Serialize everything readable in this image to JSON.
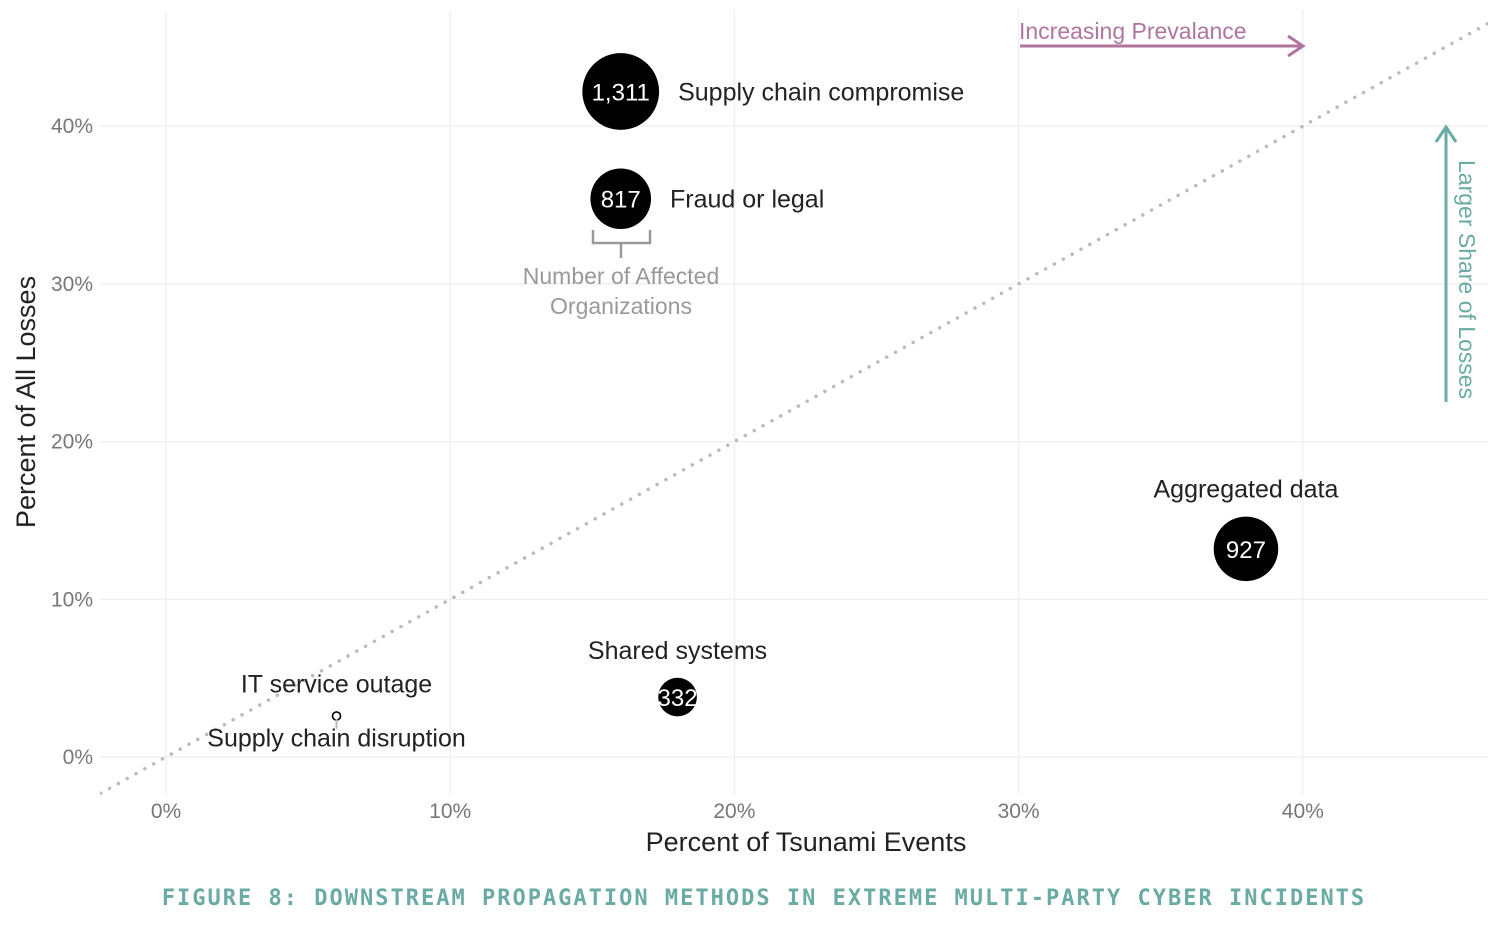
{
  "caption": "FIGURE 8: DOWNSTREAM PROPAGATION METHODS IN EXTREME MULTI-PARTY CYBER INCIDENTS",
  "colors": {
    "bubble": "#000000",
    "bubble_text": "#ffffff",
    "grid": "#eeeeee",
    "tick_text": "#777777",
    "axis_title": "#222222",
    "diagonal": "#bbbbbb",
    "prevalence_arrow": "#b0759e",
    "share_arrow": "#6aaba3",
    "size_legend": "#999999",
    "caption": "#6aaba3"
  },
  "chart_data": {
    "type": "scatter",
    "title": "",
    "xlabel": "Percent of Tsunami Events",
    "ylabel": "Percent of All Losses",
    "xlim": [
      -2.2,
      46.5
    ],
    "ylim": [
      -2.3,
      47
    ],
    "xticks": [
      0,
      10,
      20,
      30,
      40
    ],
    "yticks": [
      0,
      10,
      20,
      30,
      40
    ],
    "xtick_labels": [
      "0%",
      "10%",
      "20%",
      "30%",
      "40%"
    ],
    "ytick_labels": [
      "0%",
      "10%",
      "20%",
      "30%",
      "40%"
    ],
    "grid": true,
    "reference_line": "y = x",
    "size_variable": "Number of Affected Organizations",
    "points": [
      {
        "label": "Supply chain compromise",
        "x": 16.0,
        "y": 42.2,
        "size": 1311,
        "size_label": "1,311",
        "label_position": "right"
      },
      {
        "label": "Fraud or legal",
        "x": 16.0,
        "y": 35.4,
        "size": 817,
        "size_label": "817",
        "label_position": "right"
      },
      {
        "label": "Aggregated data",
        "x": 38.0,
        "y": 13.2,
        "size": 927,
        "size_label": "927",
        "label_position": "above"
      },
      {
        "label": "Shared systems",
        "x": 18.0,
        "y": 3.8,
        "size": 332,
        "size_label": "332",
        "label_position": "above"
      },
      {
        "label": "IT service outage",
        "x": 6.0,
        "y": 2.6,
        "size": 20,
        "size_label": "",
        "label_position": "above"
      },
      {
        "label": "Supply chain disruption",
        "x": 6.0,
        "y": 2.6,
        "size": 5,
        "size_label": "",
        "label_position": "below"
      }
    ],
    "annotations": {
      "prevalence": "Increasing Prevalance",
      "share": "Larger Share of Losses",
      "size_legend": [
        "Number of Affected",
        "Organizations"
      ]
    }
  }
}
